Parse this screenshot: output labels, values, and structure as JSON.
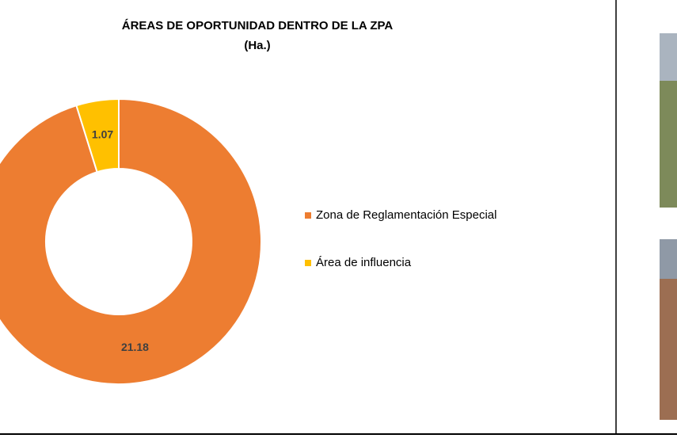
{
  "chart_data": {
    "type": "donut",
    "title": "ÁREAS DE OPORTUNIDAD DENTRO DE LA ZPA",
    "subtitle": "(Ha.)",
    "categories": [
      "Zona de Reglamentación Especial",
      "Área de influencia"
    ],
    "values": [
      21.18,
      1.07
    ],
    "colors": [
      "#ED7D31",
      "#FFC000"
    ],
    "legend": "right"
  }
}
